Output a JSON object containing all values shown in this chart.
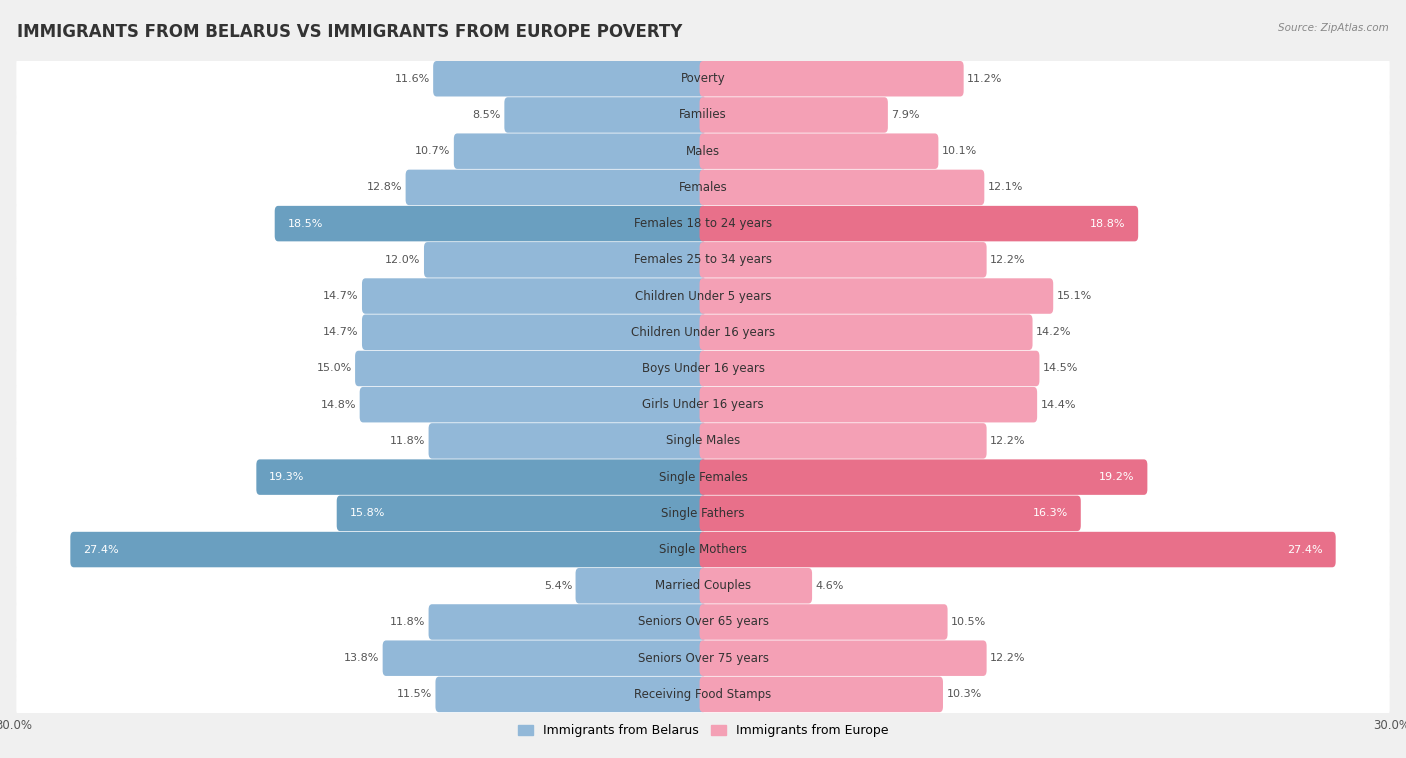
{
  "title": "IMMIGRANTS FROM BELARUS VS IMMIGRANTS FROM EUROPE POVERTY",
  "source": "Source: ZipAtlas.com",
  "categories": [
    "Poverty",
    "Families",
    "Males",
    "Females",
    "Females 18 to 24 years",
    "Females 25 to 34 years",
    "Children Under 5 years",
    "Children Under 16 years",
    "Boys Under 16 years",
    "Girls Under 16 years",
    "Single Males",
    "Single Females",
    "Single Fathers",
    "Single Mothers",
    "Married Couples",
    "Seniors Over 65 years",
    "Seniors Over 75 years",
    "Receiving Food Stamps"
  ],
  "belarus_values": [
    11.6,
    8.5,
    10.7,
    12.8,
    18.5,
    12.0,
    14.7,
    14.7,
    15.0,
    14.8,
    11.8,
    19.3,
    15.8,
    27.4,
    5.4,
    11.8,
    13.8,
    11.5
  ],
  "europe_values": [
    11.2,
    7.9,
    10.1,
    12.1,
    18.8,
    12.2,
    15.1,
    14.2,
    14.5,
    14.4,
    12.2,
    19.2,
    16.3,
    27.4,
    4.6,
    10.5,
    12.2,
    10.3
  ],
  "belarus_color": "#92b8d8",
  "europe_color": "#f4a0b5",
  "belarus_highlight_color": "#6a9fc0",
  "europe_highlight_color": "#e8708a",
  "belarus_label": "Immigrants from Belarus",
  "europe_label": "Immigrants from Europe",
  "xlim": 30.0,
  "background_color": "#f0f0f0",
  "row_white_color": "#ffffff",
  "title_fontsize": 12,
  "label_fontsize": 8.5,
  "value_fontsize": 8.0,
  "belarus_highlight_indices": [
    4,
    11,
    12,
    13
  ],
  "europe_highlight_indices": [
    4,
    11,
    12,
    13
  ]
}
